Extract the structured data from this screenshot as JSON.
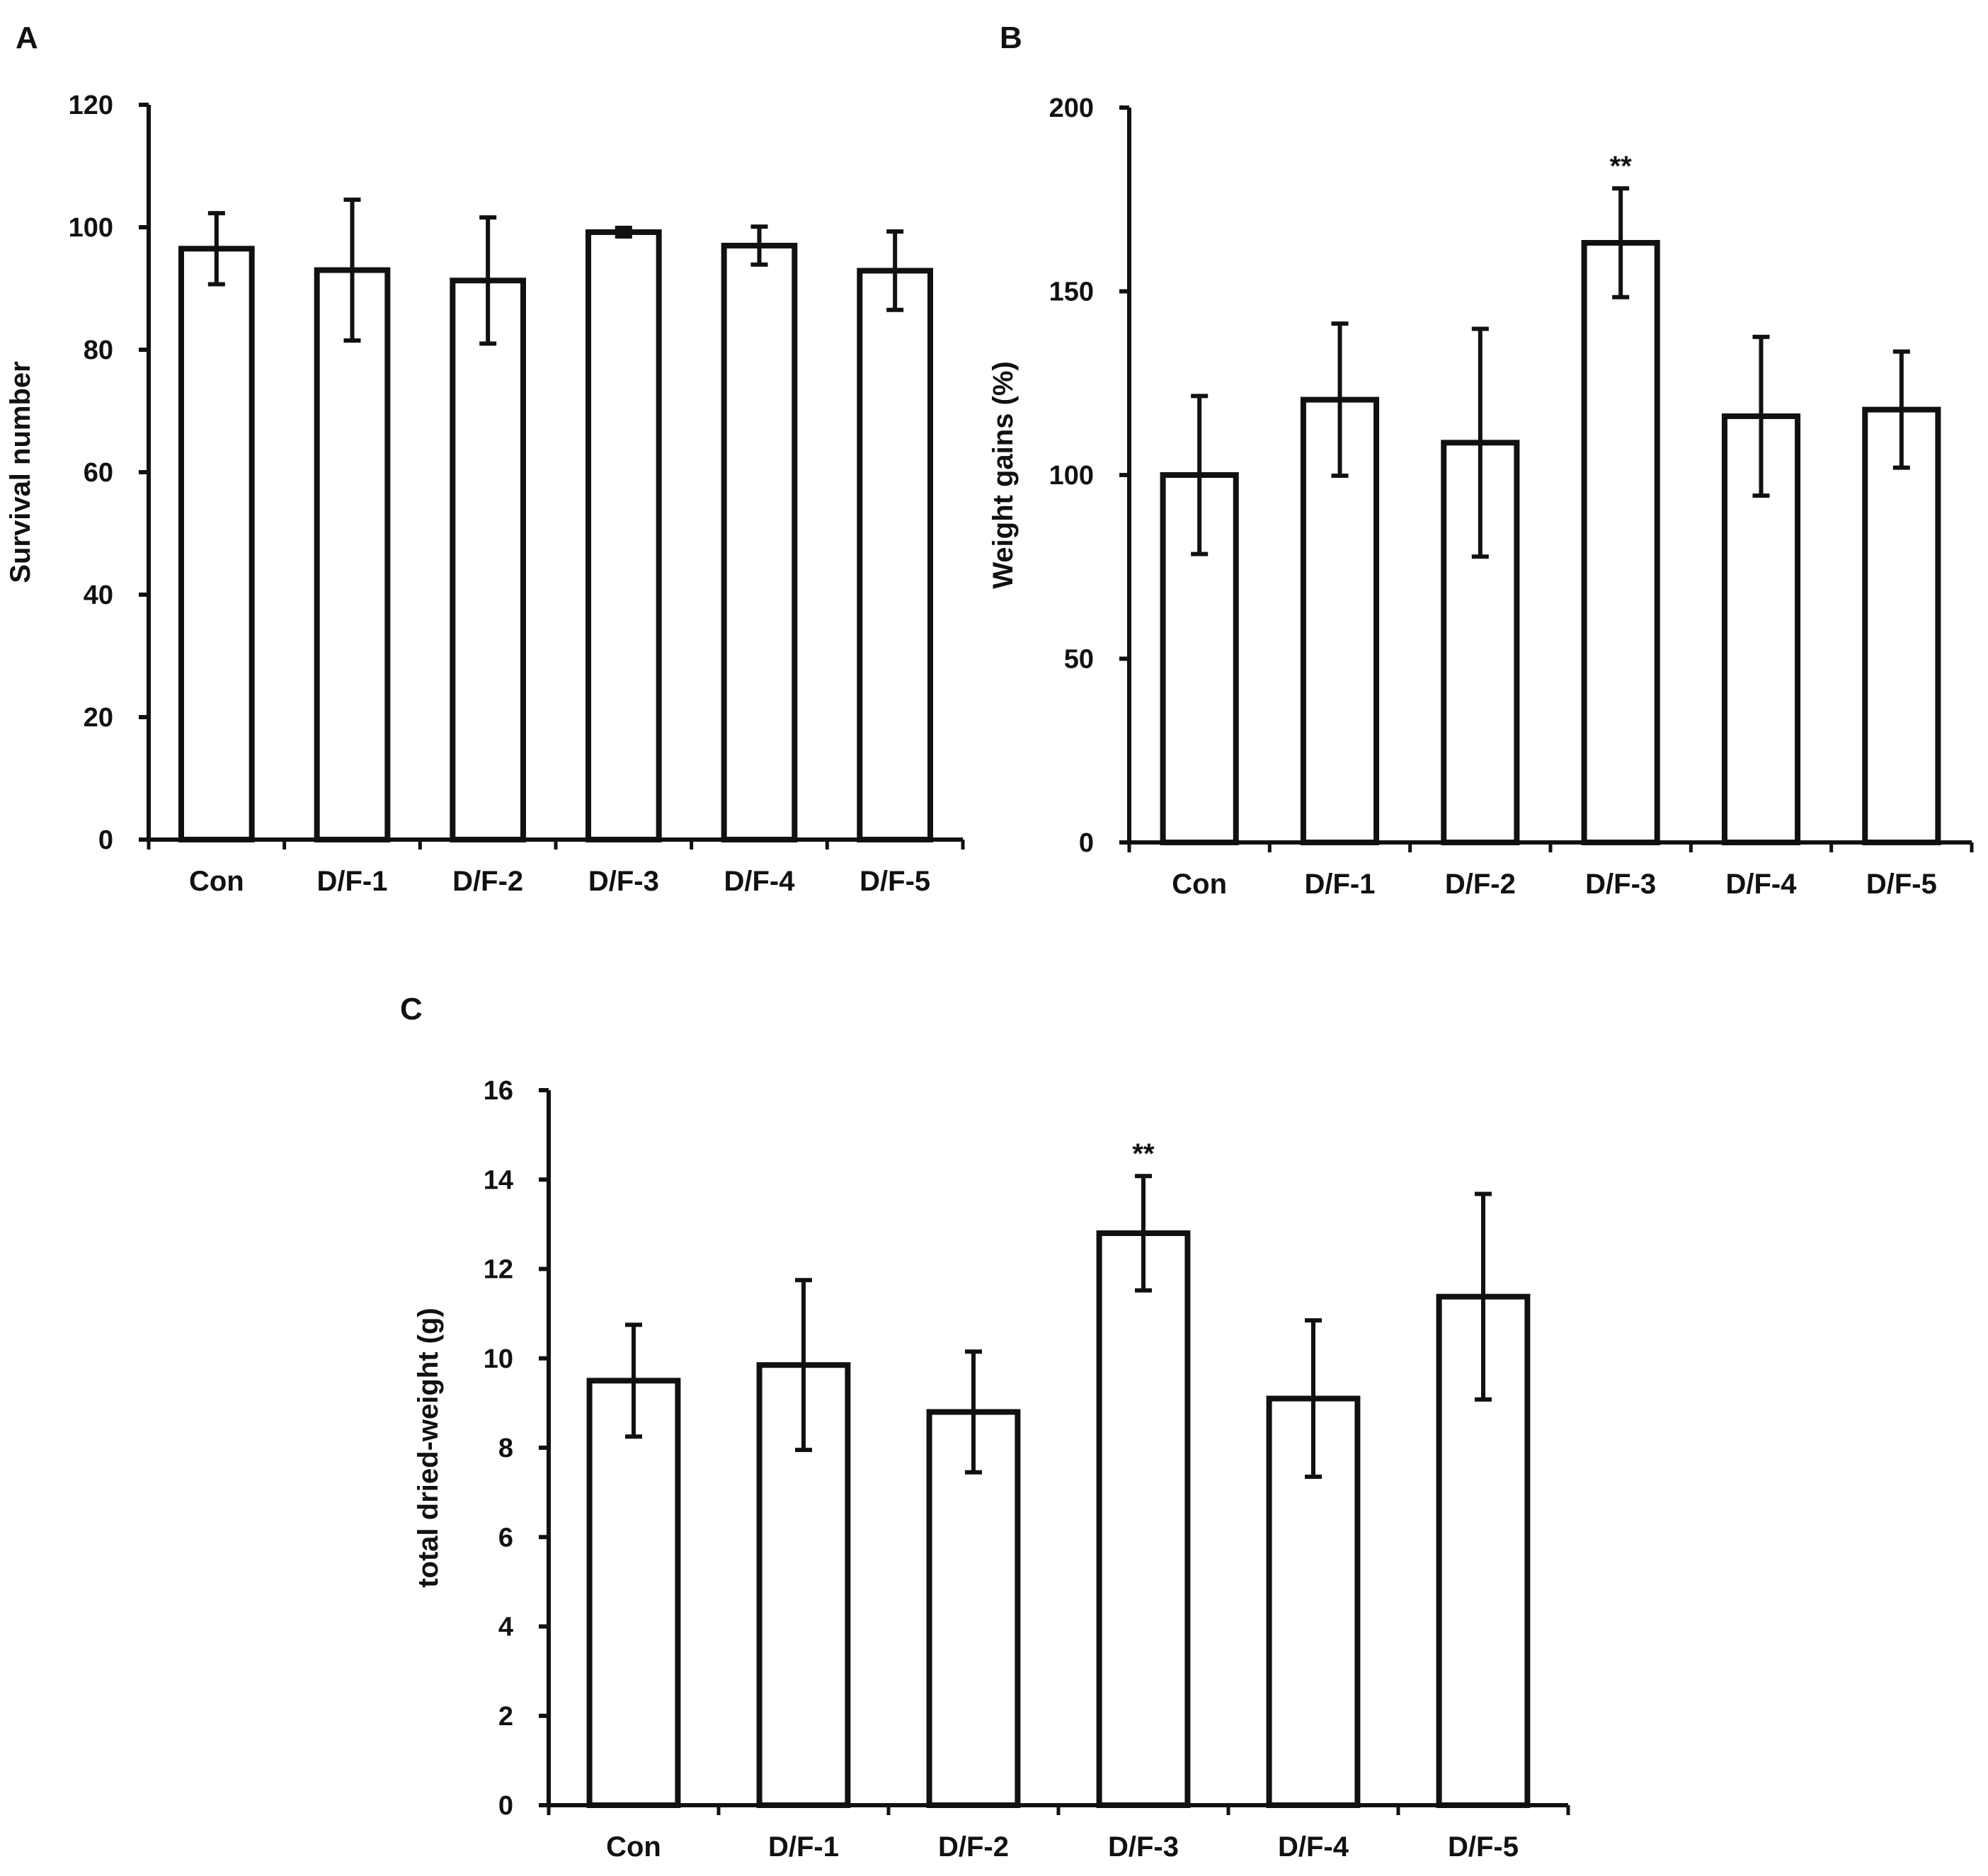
{
  "figure": {
    "panels": [
      "A",
      "B",
      "C"
    ]
  },
  "colors": {
    "ink": "#111111",
    "bar_fill": "#ffffff",
    "background": "#ffffff"
  },
  "chart_data": [
    {
      "panel": "A",
      "type": "bar",
      "categories": [
        "Con",
        "D/F-1",
        "D/F-2",
        "D/F-3",
        "D/F-4",
        "D/F-5"
      ],
      "values": [
        96.5,
        93,
        91.3,
        99.2,
        97,
        92.9
      ],
      "errors": [
        5.8,
        11.5,
        10.3,
        0.7,
        3.1,
        6.4
      ],
      "annotations": [
        "",
        "",
        "",
        "",
        "",
        ""
      ],
      "title": "",
      "xlabel": "",
      "ylabel": "Survival number",
      "ylim": [
        0,
        120
      ],
      "yticks": [
        0,
        20,
        40,
        60,
        80,
        100,
        120
      ],
      "grid": false,
      "legend": "none"
    },
    {
      "panel": "B",
      "type": "bar",
      "categories": [
        "Con",
        "D/F-1",
        "D/F-2",
        "D/F-3",
        "D/F-4",
        "D/F-5"
      ],
      "values": [
        100,
        120.5,
        108.8,
        163.2,
        116,
        117.8
      ],
      "errors": [
        21.5,
        20.7,
        31,
        14.8,
        21.6,
        15.8
      ],
      "annotations": [
        "",
        "",
        "",
        "**",
        "",
        ""
      ],
      "title": "",
      "xlabel": "",
      "ylabel": "Weight gains (%)",
      "ylim": [
        0,
        200
      ],
      "yticks": [
        0,
        50,
        100,
        150,
        200
      ],
      "grid": false,
      "legend": "none"
    },
    {
      "panel": "C",
      "type": "bar",
      "categories": [
        "Con",
        "D/F-1",
        "D/F-2",
        "D/F-3",
        "D/F-4",
        "D/F-5"
      ],
      "values": [
        9.5,
        9.85,
        8.8,
        12.8,
        9.1,
        11.38
      ],
      "errors": [
        1.25,
        1.9,
        1.35,
        1.28,
        1.75,
        2.3
      ],
      "annotations": [
        "",
        "",
        "",
        "**",
        "",
        ""
      ],
      "title": "",
      "xlabel": "",
      "ylabel": "total dried-weight (g)",
      "ylim": [
        0,
        16
      ],
      "yticks": [
        0,
        2,
        4,
        6,
        8,
        10,
        12,
        14,
        16
      ],
      "grid": false,
      "legend": "none"
    }
  ]
}
